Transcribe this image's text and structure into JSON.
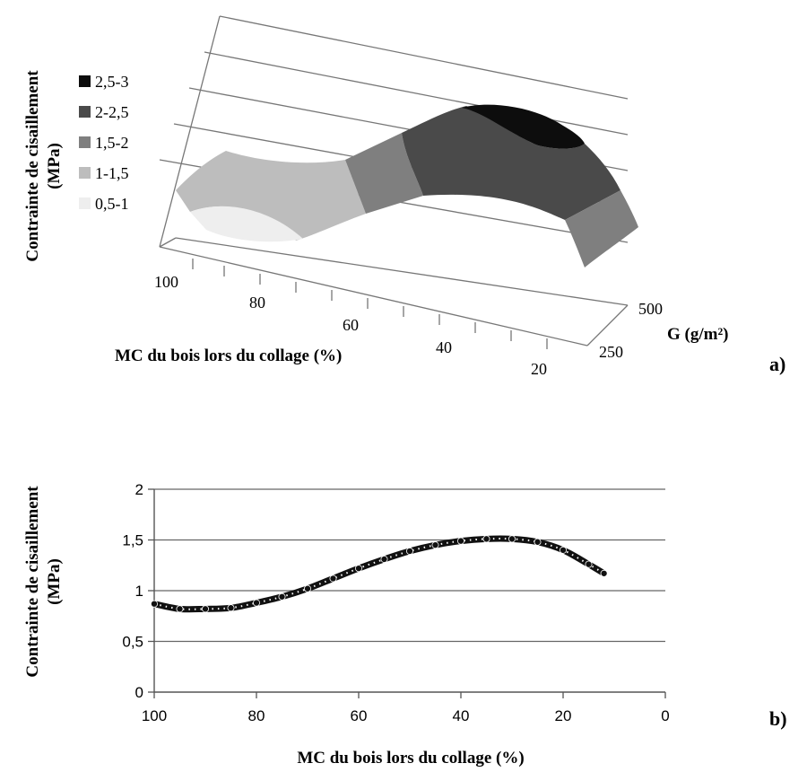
{
  "chart_data": [
    {
      "type": "surface",
      "panel_label": "a)",
      "ylabel_line1": "Contrainte de cisaillement",
      "ylabel_line2": "(MPa)",
      "xlabel": "MC du bois lors du collage (%)",
      "zlabel": "G (g/m²)",
      "x_ticks": [
        "100",
        "80",
        "60",
        "40",
        "20"
      ],
      "z_ticks": [
        "500",
        "250"
      ],
      "legend": [
        {
          "label": "2,5-3",
          "color": "#0d0d0d"
        },
        {
          "label": "2-2,5",
          "color": "#4a4a4a"
        },
        {
          "label": "1,5-2",
          "color": "#7f7f7f"
        },
        {
          "label": "1-1,5",
          "color": "#bdbdbd"
        },
        {
          "label": "0,5-1",
          "color": "#eeeeee"
        }
      ],
      "legend_position": "left",
      "grid": true
    },
    {
      "type": "line",
      "panel_label": "b)",
      "ylabel_line1": "Contrainte de cisaillement",
      "ylabel_line2": "(MPa)",
      "xlabel": "MC du bois lors du collage (%)",
      "x_reversed": true,
      "xlim": [
        0,
        100
      ],
      "ylim": [
        0,
        2
      ],
      "x_ticks": [
        "100",
        "80",
        "60",
        "40",
        "20",
        "0"
      ],
      "y_ticks": [
        "0",
        "0,5",
        "1",
        "1,5",
        "2"
      ],
      "grid": true,
      "series": [
        {
          "color": "#111111",
          "marker": "circle",
          "x": [
            100,
            95,
            90,
            85,
            80,
            75,
            70,
            65,
            60,
            55,
            50,
            45,
            40,
            35,
            30,
            25,
            20,
            15,
            12
          ],
          "y": [
            0.87,
            0.82,
            0.82,
            0.83,
            0.88,
            0.94,
            1.02,
            1.12,
            1.22,
            1.31,
            1.39,
            1.45,
            1.49,
            1.51,
            1.51,
            1.48,
            1.4,
            1.26,
            1.17
          ]
        }
      ]
    }
  ]
}
